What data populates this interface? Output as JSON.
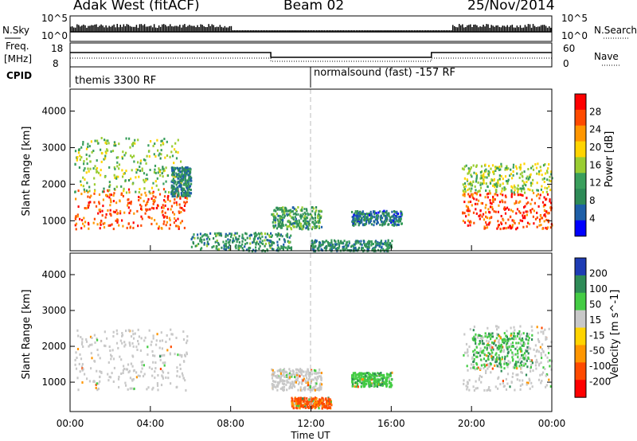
{
  "header": {
    "title": "Adak West (fitACF)",
    "beam": "Beam 02",
    "date": "25/Nov/2014"
  },
  "nsky_panel": {
    "left_label": "N.Sky",
    "right_label": "N.Search",
    "ticks_left": [
      "10^5",
      "10^0"
    ],
    "ticks_right": [
      "10^5",
      "10^0"
    ]
  },
  "freq_panel": {
    "left_label": "Freq.",
    "left_unit": "[MHz]",
    "right_label": "Nave",
    "ticks_left": [
      "18",
      "8"
    ],
    "ticks_right": [
      "60",
      "0"
    ]
  },
  "cpid_panel": {
    "label": "CPID",
    "modes": [
      {
        "name": "themis 3300 RF",
        "start_hour": 0,
        "end_hour": 12
      },
      {
        "name": "normalsound (fast) -157 RF",
        "start_hour": 12,
        "end_hour": 24
      }
    ]
  },
  "chart_data": [
    {
      "type": "heatmap",
      "name": "power",
      "ylabel": "Slant Range [km]",
      "xlabel": "Time UT",
      "xlim": [
        0,
        24
      ],
      "ylim": [
        180,
        4600
      ],
      "yticks": [
        1000,
        2000,
        3000,
        4000
      ],
      "xticks": [
        "00:00",
        "04:00",
        "08:00",
        "12:00",
        "16:00",
        "20:00",
        "00:00"
      ],
      "colorbar": {
        "label": "Power [dB]",
        "ticks": [
          "28",
          "24",
          "20",
          "16",
          "12",
          "8",
          "4"
        ],
        "colors": [
          "#ff0000",
          "#ff4a00",
          "#ff9600",
          "#ffd400",
          "#9acd32",
          "#3a9f5c",
          "#2e8b57",
          "#1e5fa8",
          "#0000ff"
        ]
      },
      "regions": [
        {
          "t": [
            0.2,
            5.8
          ],
          "r": [
            800,
            1900
          ],
          "level": 26
        },
        {
          "t": [
            0.2,
            5.5
          ],
          "r": [
            1800,
            3300
          ],
          "level": 14
        },
        {
          "t": [
            5.0,
            6.0
          ],
          "r": [
            1700,
            2500
          ],
          "level": 7
        },
        {
          "t": [
            6.0,
            11.0
          ],
          "r": [
            200,
            700
          ],
          "level": 9
        },
        {
          "t": [
            10.0,
            12.5
          ],
          "r": [
            800,
            1400
          ],
          "level": 10
        },
        {
          "t": [
            12.0,
            16.0
          ],
          "r": [
            200,
            500
          ],
          "level": 8
        },
        {
          "t": [
            14.0,
            16.5
          ],
          "r": [
            900,
            1300
          ],
          "level": 6
        },
        {
          "t": [
            19.5,
            24.0
          ],
          "r": [
            800,
            1800
          ],
          "level": 27
        },
        {
          "t": [
            19.5,
            24.0
          ],
          "r": [
            1800,
            2600
          ],
          "level": 15
        }
      ]
    },
    {
      "type": "heatmap",
      "name": "velocity",
      "ylabel": "Slant Range [km]",
      "xlabel": "Time UT",
      "xlim": [
        0,
        24
      ],
      "ylim": [
        180,
        4600
      ],
      "yticks": [
        1000,
        2000,
        3000,
        4000
      ],
      "xticks": [
        "00:00",
        "04:00",
        "08:00",
        "12:00",
        "16:00",
        "20:00",
        "00:00"
      ],
      "colorbar": {
        "label": "Velocity [m s^-1]",
        "ticks": [
          "200",
          "100",
          "50",
          "15",
          "-15",
          "-50",
          "-100",
          "-200"
        ],
        "colors": [
          "#1e3cb4",
          "#2e8b57",
          "#44cc44",
          "#c8c8c8",
          "#ffd400",
          "#ff9600",
          "#ff4a00",
          "#ff0000"
        ]
      },
      "regions": [
        {
          "t": [
            0.2,
            5.8
          ],
          "r": [
            800,
            2500
          ],
          "level": 0
        },
        {
          "t": [
            10.0,
            12.5
          ],
          "r": [
            800,
            1400
          ],
          "level": 0
        },
        {
          "t": [
            11.0,
            13.0
          ],
          "r": [
            300,
            600
          ],
          "level": -60
        },
        {
          "t": [
            14.0,
            16.0
          ],
          "r": [
            900,
            1300
          ],
          "level": 40
        },
        {
          "t": [
            19.5,
            24.0
          ],
          "r": [
            800,
            2600
          ],
          "level": 0
        },
        {
          "t": [
            20.0,
            23.0
          ],
          "r": [
            1400,
            2400
          ],
          "level": 45
        }
      ]
    }
  ]
}
